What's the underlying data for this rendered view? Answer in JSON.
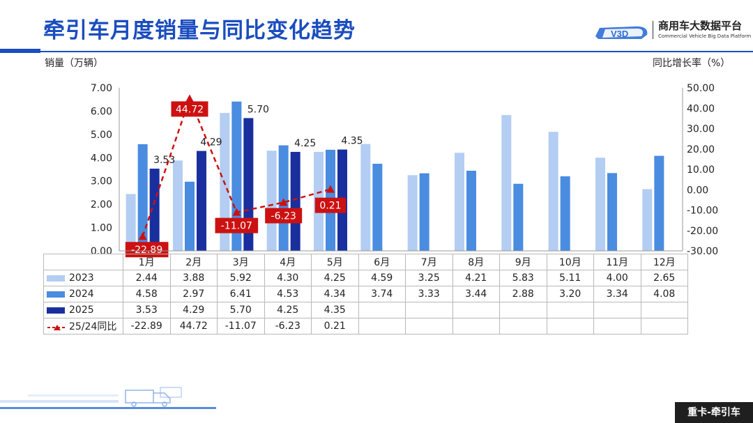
{
  "title": "牵引车月度销量与同比变化趋势",
  "logo": {
    "mark": "V3D",
    "name": "商用车大数据平台",
    "subtitle": "Commercial Vehicle Big Data Platform"
  },
  "footer_tag": "重卡-牵引车",
  "colors": {
    "s2023": "#b4cdf2",
    "s2024": "#4a8ce0",
    "s2025": "#1a2f9e",
    "yoy": "#cc1111",
    "title": "#1a4dbf"
  },
  "chart_data": {
    "type": "bar",
    "categories": [
      "1月",
      "2月",
      "3月",
      "4月",
      "5月",
      "6月",
      "7月",
      "8月",
      "9月",
      "10月",
      "11月",
      "12月"
    ],
    "ylabel": "销量（万辆）",
    "y2label": "同比增长率（%）",
    "ylim": [
      0,
      7
    ],
    "y2lim": [
      -30,
      50
    ],
    "yticks": [
      "0.00",
      "1.00",
      "2.00",
      "3.00",
      "4.00",
      "5.00",
      "6.00",
      "7.00"
    ],
    "y2ticks": [
      "-30.00",
      "-20.00",
      "-10.00",
      "0.00",
      "10.00",
      "20.00",
      "30.00",
      "40.00",
      "50.00"
    ],
    "series": [
      {
        "name": "2023",
        "type": "bar",
        "values": [
          2.44,
          3.88,
          5.92,
          4.3,
          4.25,
          4.59,
          3.25,
          4.21,
          5.83,
          5.11,
          4.0,
          2.65
        ],
        "labels": [
          "2.44",
          "3.88",
          "5.92",
          "4.30",
          "4.25",
          "4.59",
          "3.25",
          "4.21",
          "5.83",
          "5.11",
          "4.00",
          "2.65"
        ]
      },
      {
        "name": "2024",
        "type": "bar",
        "values": [
          4.58,
          2.97,
          6.41,
          4.53,
          4.34,
          3.74,
          3.33,
          3.44,
          2.88,
          3.2,
          3.34,
          4.08
        ],
        "labels": [
          "4.58",
          "2.97",
          "6.41",
          "4.53",
          "4.34",
          "3.74",
          "3.33",
          "3.44",
          "2.88",
          "3.20",
          "3.34",
          "4.08"
        ]
      },
      {
        "name": "2025",
        "type": "bar",
        "values": [
          3.53,
          4.29,
          5.7,
          4.25,
          4.35,
          null,
          null,
          null,
          null,
          null,
          null,
          null
        ],
        "labels": [
          "3.53",
          "4.29",
          "5.70",
          "4.25",
          "4.35",
          "",
          "",
          "",
          "",
          "",
          "",
          ""
        ]
      },
      {
        "name": "25/24同比",
        "type": "line",
        "axis": "right",
        "values": [
          -22.89,
          44.72,
          -11.07,
          -6.23,
          0.21,
          null,
          null,
          null,
          null,
          null,
          null,
          null
        ],
        "labels": [
          "-22.89",
          "44.72",
          "-11.07",
          "-6.23",
          "0.21",
          "",
          "",
          "",
          "",
          "",
          "",
          ""
        ]
      }
    ],
    "bar_value_labels": {
      "2025": [
        "3.53",
        "4.29",
        "5.70",
        "4.25",
        "4.35"
      ]
    },
    "legend": "table"
  }
}
